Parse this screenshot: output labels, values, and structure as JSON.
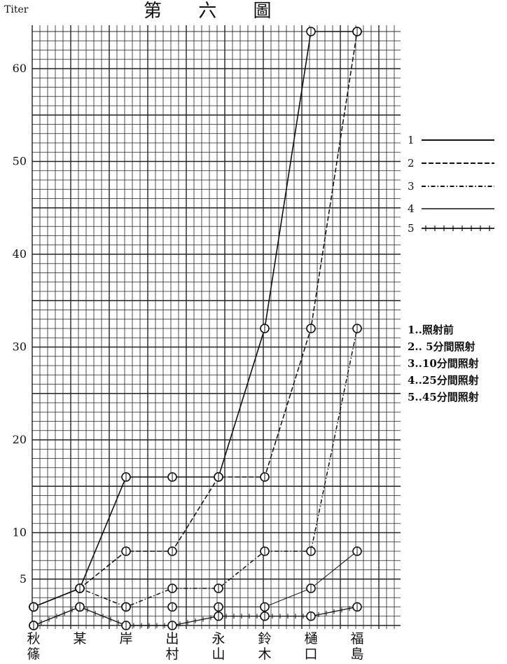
{
  "chart_data": {
    "type": "line",
    "title": "第 六 圖",
    "ylabel": "Titer",
    "xlabel": "",
    "ylim": [
      0,
      64
    ],
    "yticks": [
      5,
      10,
      20,
      30,
      40,
      50,
      60
    ],
    "grid": true,
    "legend_position": "right",
    "categories": [
      {
        "top": "秋",
        "bottom": "篠"
      },
      {
        "top": "某",
        "bottom": ""
      },
      {
        "top": "岸",
        "bottom": ""
      },
      {
        "top": "出",
        "bottom": "村"
      },
      {
        "top": "永",
        "bottom": "山"
      },
      {
        "top": "鈴",
        "bottom": "木"
      },
      {
        "top": "樋",
        "bottom": "口"
      },
      {
        "top": "福",
        "bottom": "島"
      }
    ],
    "legend_keys": [
      "1",
      "2",
      "3",
      "4",
      "5"
    ],
    "legend_notes": [
      "1..照射前",
      "2.. 5分間照射",
      "3..10分間照射",
      "4..25分間照射",
      "5..45分間照射"
    ],
    "series": [
      {
        "name": "1",
        "style": "solid",
        "values": [
          2,
          4,
          16,
          16,
          16,
          32,
          64,
          64
        ]
      },
      {
        "name": "2",
        "style": "dashed",
        "values": [
          2,
          4,
          8,
          8,
          16,
          16,
          32,
          64
        ]
      },
      {
        "name": "3",
        "style": "dashdot",
        "values": [
          2,
          4,
          2,
          4,
          4,
          8,
          8,
          32
        ]
      },
      {
        "name": "4",
        "style": "thin",
        "values": [
          0,
          2,
          2,
          2,
          2,
          2,
          4,
          8
        ]
      },
      {
        "name": "5",
        "style": "cross",
        "values": [
          0,
          2,
          0,
          0,
          1,
          1,
          1,
          2
        ]
      }
    ]
  }
}
